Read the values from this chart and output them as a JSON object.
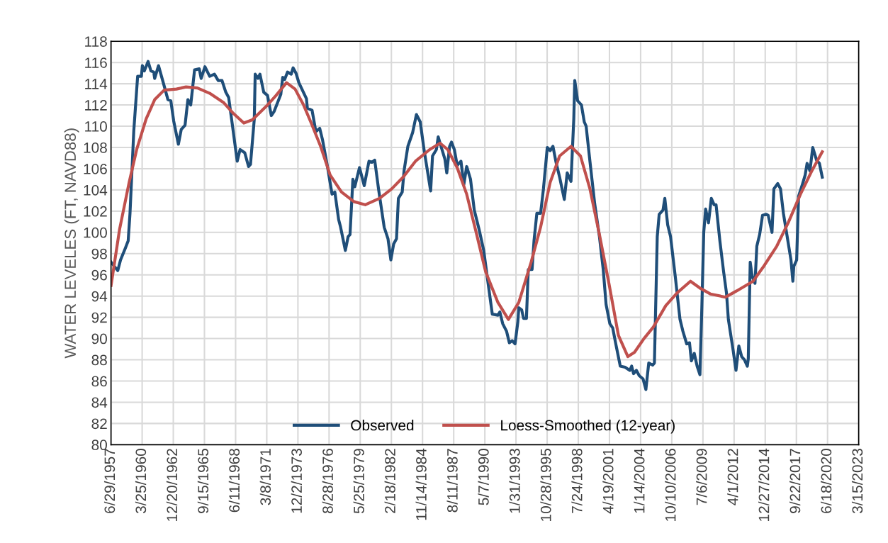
{
  "chart_data": {
    "type": "line",
    "ylabel": "WATER LEVELES (FT, NAVD88)",
    "ylim": [
      80,
      118
    ],
    "yticks": [
      80,
      82,
      84,
      86,
      88,
      90,
      92,
      94,
      96,
      98,
      100,
      102,
      104,
      106,
      108,
      110,
      112,
      114,
      116,
      118
    ],
    "xlim": [
      "1957-06-29",
      "2023-03-15"
    ],
    "xticks": [
      {
        "value": "1957-06-29",
        "label": "6/29/1957"
      },
      {
        "value": "1960-03-25",
        "label": "3/25/1960"
      },
      {
        "value": "1962-12-20",
        "label": "12/20/1962"
      },
      {
        "value": "1965-09-15",
        "label": "9/15/1965"
      },
      {
        "value": "1968-06-11",
        "label": "6/11/1968"
      },
      {
        "value": "1971-03-08",
        "label": "3/8/1971"
      },
      {
        "value": "1973-12-02",
        "label": "12/2/1973"
      },
      {
        "value": "1976-08-28",
        "label": "8/28/1976"
      },
      {
        "value": "1979-05-25",
        "label": "5/25/1979"
      },
      {
        "value": "1982-02-18",
        "label": "2/18/1982"
      },
      {
        "value": "1984-11-14",
        "label": "11/14/1984"
      },
      {
        "value": "1987-08-11",
        "label": "8/11/1987"
      },
      {
        "value": "1990-05-07",
        "label": "5/7/1990"
      },
      {
        "value": "1993-01-31",
        "label": "1/31/1993"
      },
      {
        "value": "1995-10-28",
        "label": "10/28/1995"
      },
      {
        "value": "1998-07-24",
        "label": "7/24/1998"
      },
      {
        "value": "2001-04-19",
        "label": "4/19/2001"
      },
      {
        "value": "2004-01-14",
        "label": "1/14/2004"
      },
      {
        "value": "2006-10-10",
        "label": "10/10/2006"
      },
      {
        "value": "2009-07-06",
        "label": "7/6/2009"
      },
      {
        "value": "2012-04-01",
        "label": "4/1/2012"
      },
      {
        "value": "2014-12-27",
        "label": "12/27/2014"
      },
      {
        "value": "2017-09-22",
        "label": "9/22/2017"
      },
      {
        "value": "2020-06-18",
        "label": "6/18/2020"
      },
      {
        "value": "2023-03-15",
        "label": "3/15/2023"
      }
    ],
    "grid": true,
    "legend": "bottom",
    "marker": "none",
    "line_style": "solid",
    "series": [
      {
        "name": "Observed",
        "color": "#1f4e79",
        "x": [
          "1957-07",
          "1958-02",
          "1958-05",
          "1958-10",
          "1959-01",
          "1959-03",
          "1959-07",
          "1959-11",
          "1960-03",
          "1960-04",
          "1960-06",
          "1960-10",
          "1961-01",
          "1961-04",
          "1961-05",
          "1961-09",
          "1962-02",
          "1962-07",
          "1962-10",
          "1963-01",
          "1963-06",
          "1963-09",
          "1964-01",
          "1964-04",
          "1964-07",
          "1964-11",
          "1965-04",
          "1965-06",
          "1965-10",
          "1966-03",
          "1966-08",
          "1966-12",
          "1967-04",
          "1967-08",
          "1967-11",
          "1968-02",
          "1968-08",
          "1968-11",
          "1969-04",
          "1969-08",
          "1969-10",
          "1970-02",
          "1970-03",
          "1970-06",
          "1970-08",
          "1970-12",
          "1971-04",
          "1971-08",
          "1971-11",
          "1972-06",
          "1972-08",
          "1972-10",
          "1973-01",
          "1973-05",
          "1973-07",
          "1973-10",
          "1974-01",
          "1974-09",
          "1974-10",
          "1975-03",
          "1975-07",
          "1975-11",
          "1976-02",
          "1976-07",
          "1976-12",
          "1977-03",
          "1977-07",
          "1977-09",
          "1978-02",
          "1978-05",
          "1978-07",
          "1978-10",
          "1978-12",
          "1979-05",
          "1979-10",
          "1980-03",
          "1980-06",
          "1980-09",
          "1981-01",
          "1981-07",
          "1981-11",
          "1982-02",
          "1982-05",
          "1982-08",
          "1982-10",
          "1983-02",
          "1983-04",
          "1983-08",
          "1984-01",
          "1984-05",
          "1984-09",
          "1985-01",
          "1985-05",
          "1985-08",
          "1985-10",
          "1986-02",
          "1986-04",
          "1986-07",
          "1986-11",
          "1987-01",
          "1987-04",
          "1987-06",
          "1987-09",
          "1987-12",
          "1988-04",
          "1988-07",
          "1988-10",
          "1989-02",
          "1989-06",
          "1989-11",
          "1990-04",
          "1990-08",
          "1991-01",
          "1991-07",
          "1991-09",
          "1991-12",
          "1992-04",
          "1992-07",
          "1992-10",
          "1993-01",
          "1993-04",
          "1993-05",
          "1993-08",
          "1993-10",
          "1994-01",
          "1994-03",
          "1994-07",
          "1994-09",
          "1994-12",
          "1995-04",
          "1995-07",
          "1995-11",
          "1996-02",
          "1996-05",
          "1996-08",
          "1996-12",
          "1997-05",
          "1997-08",
          "1997-12",
          "1998-03",
          "1998-04",
          "1998-07",
          "1998-11",
          "1999-02",
          "1999-04",
          "1999-08",
          "2000-01",
          "2000-06",
          "2000-10",
          "2001-01",
          "2001-05",
          "2001-08",
          "2001-11",
          "2002-04",
          "2002-09",
          "2003-02",
          "2003-04",
          "2003-06",
          "2003-09",
          "2003-12",
          "2004-04",
          "2004-07",
          "2004-10",
          "2005-02",
          "2005-04",
          "2005-07",
          "2005-09",
          "2006-01",
          "2006-03",
          "2006-06",
          "2006-09",
          "2007-02",
          "2007-07",
          "2007-10",
          "2008-02",
          "2008-05",
          "2008-07",
          "2008-10",
          "2009-01",
          "2009-04",
          "2009-06",
          "2009-08",
          "2009-10",
          "2010-01",
          "2010-04",
          "2010-07",
          "2010-09",
          "2011-01",
          "2011-05",
          "2011-08",
          "2011-10",
          "2012-03",
          "2012-06",
          "2012-09",
          "2012-12",
          "2013-03",
          "2013-06",
          "2013-07",
          "2013-09",
          "2013-11",
          "2014-02",
          "2014-04",
          "2014-07",
          "2014-10",
          "2015-02",
          "2015-04",
          "2015-08",
          "2015-10",
          "2016-02",
          "2016-05",
          "2016-08",
          "2016-12",
          "2017-04",
          "2017-06",
          "2017-07",
          "2017-10",
          "2017-12",
          "2018-04",
          "2018-07",
          "2018-09",
          "2018-12",
          "2019-03",
          "2019-07",
          "2019-10",
          "2020-01"
        ],
        "values": [
          97.2,
          96.4,
          97.4,
          98.5,
          99.2,
          101.8,
          109.6,
          114.7,
          114.7,
          115.7,
          115.2,
          116.1,
          115.2,
          115.1,
          114.5,
          115.7,
          114.1,
          112.5,
          112.4,
          110.5,
          108.3,
          109.7,
          110.1,
          112.5,
          112.0,
          115.3,
          115.4,
          114.5,
          115.6,
          114.7,
          114.9,
          114.3,
          114.3,
          113.2,
          112.7,
          110.7,
          106.7,
          107.8,
          107.5,
          106.2,
          106.4,
          110.7,
          114.9,
          114.5,
          114.9,
          113.2,
          112.9,
          111.0,
          111.4,
          113.0,
          114.6,
          114.4,
          115.1,
          114.9,
          115.5,
          115.0,
          114.1,
          112.6,
          111.7,
          111.5,
          109.5,
          109.8,
          108.7,
          106.3,
          103.6,
          103.8,
          101.2,
          100.5,
          98.3,
          99.6,
          99.8,
          105.0,
          104.3,
          106.1,
          104.4,
          106.7,
          106.6,
          106.8,
          104.1,
          100.5,
          99.4,
          97.4,
          98.9,
          99.4,
          103.2,
          103.8,
          105.8,
          108.1,
          109.4,
          111.1,
          110.4,
          107.8,
          105.6,
          103.9,
          107.2,
          107.8,
          109.0,
          108.1,
          106.9,
          105.6,
          108.1,
          108.5,
          107.8,
          106.3,
          106.7,
          104.5,
          106.2,
          105.0,
          102.1,
          100.3,
          98.3,
          95.6,
          92.3,
          92.2,
          92.5,
          91.4,
          90.7,
          89.6,
          89.8,
          89.5,
          91.6,
          92.9,
          92.7,
          91.9,
          91.9,
          96.5,
          96.5,
          99.2,
          101.8,
          101.8,
          104.1,
          108.0,
          107.7,
          108.1,
          106.7,
          105.2,
          103.1,
          105.6,
          104.8,
          110.7,
          114.3,
          112.4,
          112.0,
          110.4,
          110.0,
          106.7,
          102.7,
          99.6,
          96.5,
          93.2,
          91.4,
          91.0,
          89.6,
          87.4,
          87.3,
          87.0,
          87.4,
          86.7,
          87.0,
          86.5,
          86.2,
          85.2,
          87.7,
          87.5,
          87.7,
          99.6,
          101.7,
          102.1,
          103.2,
          100.7,
          99.6,
          95.8,
          91.8,
          90.7,
          89.5,
          89.6,
          87.9,
          88.6,
          87.4,
          86.6,
          92.9,
          100.0,
          102.2,
          100.9,
          103.2,
          102.6,
          102.6,
          99.2,
          96.3,
          94.3,
          91.8,
          88.9,
          87.0,
          89.3,
          88.3,
          88.0,
          87.4,
          88.1,
          97.2,
          95.9,
          95.2,
          98.7,
          99.8,
          101.6,
          101.7,
          101.6,
          100.0,
          104.1,
          104.6,
          104.1,
          101.8,
          99.6,
          97.4,
          95.4,
          96.8,
          97.4,
          103.4,
          104.5,
          105.4,
          106.5,
          105.8,
          108.0,
          106.8,
          106.5,
          105.2
        ]
      },
      {
        "name": "Loess-Smoothed (12-year)",
        "color": "#c0504d",
        "x": [
          "1957-07",
          "1958-04",
          "1959-02",
          "1959-10",
          "1960-08",
          "1961-05",
          "1962-03",
          "1963-04",
          "1964-02",
          "1965-02",
          "1966-03",
          "1967-06",
          "1968-04",
          "1969-03",
          "1969-12",
          "1971-03",
          "1972-01",
          "1972-12",
          "1973-09",
          "1974-06",
          "1975-02",
          "1975-12",
          "1976-10",
          "1977-10",
          "1978-11",
          "1979-11",
          "1981-02",
          "1982-03",
          "1983-03",
          "1984-04",
          "1985-07",
          "1986-06",
          "1987-02",
          "1987-12",
          "1988-10",
          "1989-08",
          "1990-06",
          "1991-07",
          "1992-06",
          "1993-05",
          "1994-06",
          "1995-04",
          "1996-02",
          "1996-12",
          "1997-12",
          "1998-10",
          "1999-08",
          "2000-06",
          "2001-04",
          "2002-02",
          "2002-12",
          "2003-07",
          "2004-05",
          "2005-03",
          "2006-04",
          "2007-04",
          "2008-06",
          "2009-05",
          "2010-03",
          "2011-07",
          "2012-07",
          "2013-12",
          "2014-12",
          "2016-01",
          "2017-01",
          "2018-02",
          "2019-02",
          "2020-01"
        ],
        "values": [
          95.0,
          100.3,
          104.7,
          107.8,
          110.7,
          112.5,
          113.4,
          113.5,
          113.7,
          113.6,
          113.1,
          112.2,
          111.2,
          110.3,
          110.6,
          111.9,
          112.9,
          114.1,
          113.5,
          112.0,
          110.3,
          108.1,
          105.4,
          103.8,
          102.9,
          102.6,
          103.2,
          104.1,
          105.2,
          106.7,
          107.8,
          108.4,
          107.8,
          106.1,
          103.6,
          100.0,
          96.3,
          93.4,
          91.8,
          93.4,
          97.2,
          100.5,
          104.7,
          107.2,
          108.1,
          107.2,
          104.1,
          99.8,
          95.2,
          90.3,
          88.3,
          88.7,
          90.0,
          91.1,
          93.1,
          94.3,
          95.4,
          94.7,
          94.2,
          93.9,
          94.5,
          95.4,
          96.9,
          98.7,
          100.9,
          103.6,
          105.8,
          107.6
        ]
      }
    ]
  }
}
